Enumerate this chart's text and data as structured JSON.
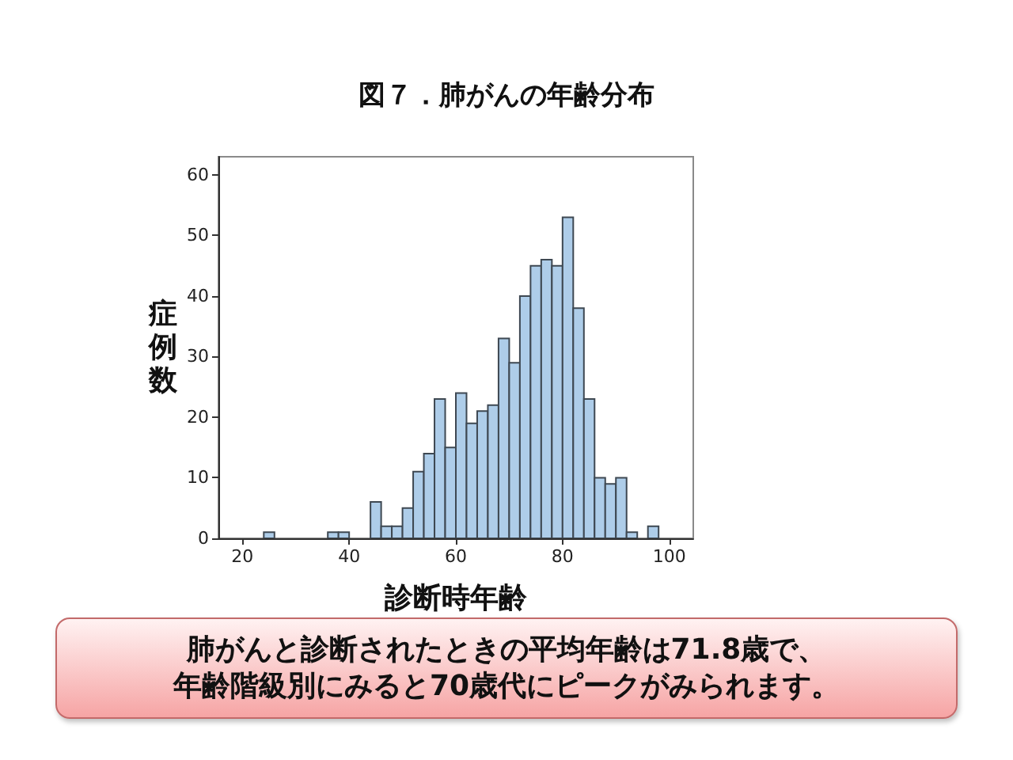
{
  "chart_data": {
    "type": "histogram",
    "title": "図７．肺がんの年齢分布",
    "xlabel": "診断時年齢",
    "ylabel": "症例数",
    "bins": [
      24,
      26,
      28,
      30,
      32,
      34,
      36,
      38,
      40,
      42,
      44,
      46,
      48,
      50,
      52,
      54,
      56,
      58,
      60,
      62,
      64,
      66,
      68,
      70,
      72,
      74,
      76,
      78,
      80,
      82,
      84,
      86,
      88,
      90,
      92,
      94,
      96,
      98
    ],
    "values": [
      1,
      0,
      0,
      0,
      0,
      0,
      1,
      1,
      0,
      0,
      6,
      2,
      2,
      5,
      11,
      14,
      23,
      15,
      24,
      19,
      21,
      22,
      33,
      29,
      40,
      45,
      46,
      45,
      53,
      38,
      23,
      10,
      9,
      10,
      1,
      0,
      2
    ],
    "color": "#aecde9",
    "xlim": [
      15.5,
      104.5
    ],
    "ylim": [
      0,
      63
    ],
    "xticks": [
      20,
      40,
      60,
      80,
      100
    ],
    "yticks": [
      0,
      10,
      20,
      30,
      40,
      50,
      60
    ],
    "annotations": [
      "肺がんと診断されたときの平均年齢は71.8歳で、",
      "年齢階級別にみると70歳代にピークがみられます。"
    ]
  }
}
